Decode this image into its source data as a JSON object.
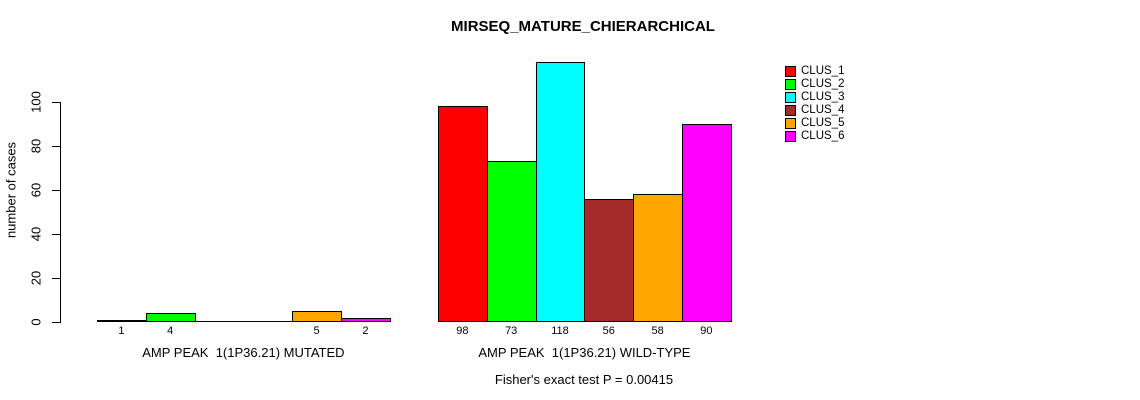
{
  "title": "MIRSEQ_MATURE_CHIERARCHICAL",
  "footer": "Fisher's exact test P = 0.00415",
  "chart_data": {
    "type": "bar",
    "title": "MIRSEQ_MATURE_CHIERARCHICAL",
    "xlabel": "",
    "ylabel": "number of cases",
    "ylim": [
      0,
      118
    ],
    "yticks": [
      0,
      20,
      40,
      60,
      80,
      100
    ],
    "grid": false,
    "legend_position": "top-right",
    "series_names": [
      "CLUS_1",
      "CLUS_2",
      "CLUS_3",
      "CLUS_4",
      "CLUS_5",
      "CLUS_6"
    ],
    "colors": [
      "#FF0000",
      "#00FF00",
      "#00FFFF",
      "#A52A2A",
      "#FFA500",
      "#FF00FF"
    ],
    "groups": [
      {
        "label": "AMP PEAK  1(1P36.21) MUTATED",
        "values": [
          1,
          4,
          0,
          0,
          5,
          2
        ],
        "bar_labels": [
          "1",
          "4",
          "",
          "",
          "5",
          "2"
        ]
      },
      {
        "label": "AMP PEAK  1(1P36.21) WILD-TYPE",
        "values": [
          98,
          73,
          118,
          56,
          58,
          90
        ],
        "bar_labels": [
          "98",
          "73",
          "118",
          "56",
          "58",
          "90"
        ]
      }
    ],
    "annotation": "Fisher's exact test P = 0.00415"
  }
}
